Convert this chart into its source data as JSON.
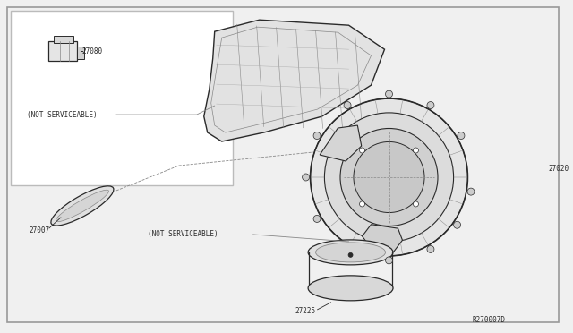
{
  "bg_color": "#f0f0f0",
  "outer_border_color": "#999999",
  "inner_box_color": "#ffffff",
  "line_color": "#2a2a2a",
  "text_color": "#2a2a2a",
  "light_gray": "#bbbbbb",
  "mid_gray": "#888888",
  "ref_code": "R270007D",
  "label_27080": "27080",
  "label_27020": "27020",
  "label_27007": "27007",
  "label_27225": "27225",
  "not_svc": "(NOT SERVICEABLE)"
}
